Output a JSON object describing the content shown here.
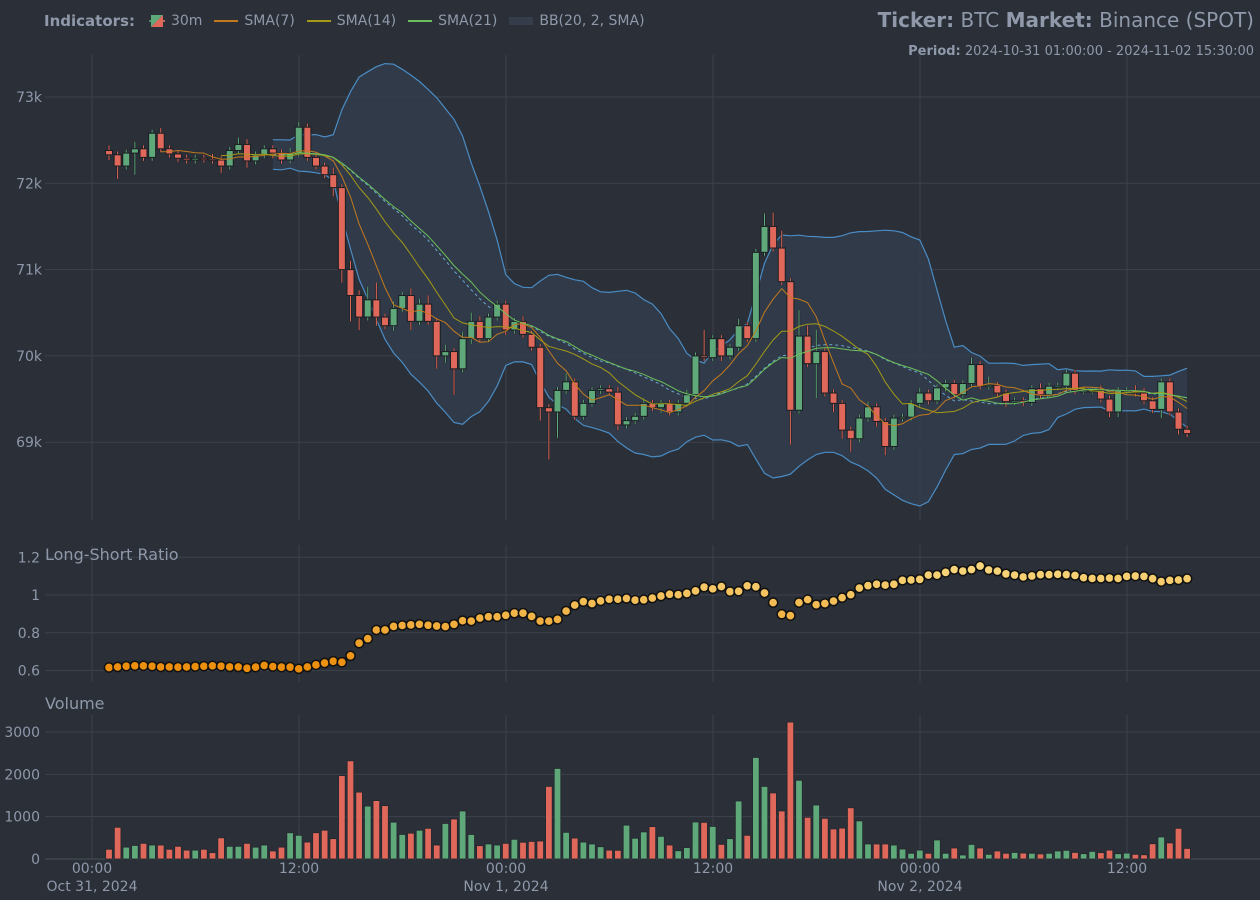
{
  "header": {
    "indicators_label": "Indicators:",
    "legend": [
      {
        "label": "30m",
        "icon": "candlestick-icon"
      },
      {
        "label": "SMA(7)",
        "color": "#c27a1e"
      },
      {
        "label": "SMA(14)",
        "color": "#a39a17"
      },
      {
        "label": "SMA(21)",
        "color": "#6cbf5a"
      },
      {
        "label": "BB(20, 2, SMA)",
        "color": "#353d4b"
      }
    ],
    "ticker_label": "Ticker:",
    "ticker": "BTC",
    "market_label": "Market:",
    "market": "Binance (SPOT)",
    "period_label": "Period:",
    "period": "2024-10-31 01:00:00 - 2024-11-02 15:30:00"
  },
  "colors": {
    "up": "#5fa87a",
    "down": "#e0685a",
    "bb": "#4a8cc4",
    "bb_fill": "#323c4c",
    "background": "#2a2f38",
    "grid": "#3c424c"
  },
  "chart_data": [
    {
      "type": "candlestick",
      "title": "BTC 30m",
      "interval_minutes": 30,
      "start": "2024-10-31 01:00:00",
      "first_open": 72380,
      "close": [
        72330,
        72200,
        72350,
        72400,
        72300,
        72580,
        72400,
        72340,
        72290,
        72270,
        72290,
        72280,
        72270,
        72200,
        72380,
        72450,
        72260,
        72330,
        72400,
        72350,
        72270,
        72350,
        72650,
        72300,
        72200,
        72100,
        71950,
        71000,
        70700,
        70450,
        70650,
        70450,
        70350,
        70550,
        70700,
        70400,
        70600,
        70400,
        70000,
        70050,
        69850,
        70200,
        70400,
        70200,
        70450,
        70600,
        70300,
        70400,
        70250,
        70100,
        69400,
        69350,
        69600,
        69700,
        69300,
        69450,
        69600,
        69620,
        69580,
        69200,
        69250,
        69300,
        69450,
        69400,
        69450,
        69350,
        69450,
        69550,
        70000,
        69980,
        70200,
        70000,
        70100,
        70350,
        70200,
        71200,
        71500,
        71250,
        70860,
        69370,
        70230,
        69910,
        70050,
        69570,
        69450,
        69140,
        69040,
        69280,
        69410,
        69240,
        68950,
        69280,
        69290,
        69450,
        69570,
        69480,
        69630,
        69680,
        69550,
        69680,
        69900,
        69650,
        69660,
        69570,
        69470,
        69480,
        69460,
        69620,
        69550,
        69650,
        69650,
        69800,
        69600,
        69600,
        69600,
        69500,
        69350,
        69600,
        69600,
        69570,
        69480,
        69380,
        69700,
        69350,
        69150,
        69100
      ],
      "wick_up": [
        60,
        40,
        40,
        80,
        40,
        40,
        60,
        40,
        40,
        40,
        40,
        40,
        60,
        40,
        40,
        80,
        60,
        40,
        40,
        40,
        40,
        60,
        60,
        40,
        40,
        40,
        80,
        40,
        100,
        60,
        150,
        200,
        40,
        80,
        40,
        80,
        60,
        100,
        40,
        80,
        40,
        80,
        100,
        60,
        40,
        40,
        40,
        40,
        60,
        40,
        40,
        40,
        40,
        100,
        40,
        40,
        40,
        40,
        40,
        60,
        40,
        40,
        60,
        40,
        40,
        40,
        40,
        60,
        40,
        300,
        40,
        40,
        40,
        80,
        40,
        40,
        150,
        160,
        200,
        40,
        300,
        120,
        250,
        40,
        40,
        40,
        40,
        40,
        60,
        40,
        40,
        40,
        40,
        40,
        60,
        40,
        40,
        40,
        40,
        40,
        80,
        40,
        100,
        40,
        40,
        40,
        40,
        40,
        60,
        40,
        40,
        40,
        40,
        40,
        40,
        60,
        40,
        40,
        40,
        60,
        60,
        40,
        40,
        40,
        40,
        40
      ],
      "wick_down": [
        60,
        150,
        40,
        250,
        40,
        40,
        40,
        40,
        40,
        40,
        40,
        40,
        40,
        80,
        40,
        40,
        80,
        40,
        40,
        60,
        40,
        40,
        40,
        40,
        40,
        40,
        100,
        150,
        300,
        150,
        40,
        100,
        40,
        60,
        40,
        100,
        40,
        40,
        150,
        80,
        300,
        40,
        60,
        40,
        40,
        40,
        60,
        40,
        40,
        40,
        150,
        550,
        300,
        40,
        40,
        40,
        40,
        40,
        40,
        60,
        40,
        40,
        40,
        40,
        60,
        40,
        40,
        40,
        40,
        40,
        40,
        60,
        40,
        40,
        40,
        40,
        40,
        40,
        40,
        400,
        40,
        40,
        400,
        40,
        100,
        100,
        150,
        40,
        40,
        60,
        100,
        40,
        40,
        40,
        40,
        40,
        40,
        40,
        40,
        40,
        40,
        40,
        40,
        40,
        60,
        40,
        40,
        40,
        40,
        40,
        40,
        40,
        40,
        40,
        40,
        40,
        60,
        60,
        40,
        40,
        40,
        40,
        100,
        40,
        60,
        40
      ],
      "indicators": {
        "sma": [
          7,
          14,
          21
        ],
        "bb": {
          "period": 20,
          "std": 2
        }
      },
      "y_ticks": [
        69000,
        70000,
        71000,
        72000,
        73000
      ],
      "y_tick_labels": [
        "69k",
        "70k",
        "71k",
        "72k",
        "73k"
      ],
      "ylim": [
        68100,
        73480
      ]
    },
    {
      "type": "scatter",
      "title": "Long-Short Ratio",
      "values": [
        0.616,
        0.619,
        0.623,
        0.625,
        0.625,
        0.623,
        0.619,
        0.619,
        0.618,
        0.619,
        0.621,
        0.623,
        0.625,
        0.623,
        0.619,
        0.619,
        0.612,
        0.618,
        0.627,
        0.621,
        0.618,
        0.618,
        0.609,
        0.619,
        0.63,
        0.64,
        0.649,
        0.644,
        0.678,
        0.745,
        0.769,
        0.815,
        0.815,
        0.834,
        0.839,
        0.842,
        0.845,
        0.84,
        0.836,
        0.833,
        0.845,
        0.864,
        0.862,
        0.878,
        0.885,
        0.885,
        0.893,
        0.904,
        0.904,
        0.887,
        0.862,
        0.862,
        0.871,
        0.915,
        0.947,
        0.965,
        0.955,
        0.969,
        0.978,
        0.978,
        0.982,
        0.973,
        0.975,
        0.984,
        0.995,
        1.004,
        1.002,
        1.009,
        1.022,
        1.042,
        1.033,
        1.045,
        1.018,
        1.02,
        1.049,
        1.044,
        1.011,
        0.96,
        0.898,
        0.891,
        0.96,
        0.976,
        0.949,
        0.955,
        0.968,
        0.986,
        1.002,
        1.037,
        1.05,
        1.057,
        1.053,
        1.057,
        1.078,
        1.08,
        1.083,
        1.106,
        1.106,
        1.12,
        1.135,
        1.127,
        1.135,
        1.154,
        1.133,
        1.127,
        1.112,
        1.106,
        1.096,
        1.101,
        1.108,
        1.108,
        1.11,
        1.108,
        1.104,
        1.092,
        1.088,
        1.088,
        1.09,
        1.088,
        1.099,
        1.101,
        1.099,
        1.087,
        1.071,
        1.078,
        1.08,
        1.087
      ],
      "y_ticks": [
        0.6,
        0.8,
        1,
        1.2
      ],
      "y_tick_labels": [
        "0.6",
        "0.8",
        "1",
        "1.2"
      ]
    },
    {
      "type": "bar",
      "title": "Volume",
      "values": [
        230,
        750,
        280,
        320,
        370,
        330,
        330,
        230,
        300,
        210,
        210,
        230,
        150,
        500,
        300,
        300,
        370,
        280,
        330,
        190,
        280,
        620,
        560,
        400,
        620,
        680,
        480,
        1970,
        2320,
        1580,
        1250,
        1380,
        1260,
        870,
        580,
        610,
        680,
        725,
        330,
        840,
        945,
        1135,
        580,
        315,
        355,
        330,
        370,
        465,
        395,
        415,
        425,
        1715,
        2140,
        630,
        495,
        400,
        355,
        290,
        210,
        205,
        800,
        490,
        640,
        765,
        535,
        330,
        195,
        270,
        875,
        865,
        770,
        345,
        480,
        1370,
        560,
        2400,
        1715,
        1560,
        1135,
        3235,
        1860,
        985,
        1275,
        960,
        710,
        730,
        1210,
        900,
        355,
        355,
        355,
        330,
        235,
        135,
        210,
        135,
        450,
        135,
        260,
        95,
        345,
        260,
        110,
        190,
        135,
        155,
        140,
        135,
        120,
        135,
        190,
        205,
        155,
        125,
        180,
        150,
        210,
        125,
        140,
        110,
        100,
        360,
        520,
        380,
        725,
        250
      ],
      "y_ticks": [
        0,
        1000,
        2000,
        3000
      ],
      "y_tick_labels": [
        "0",
        "1000",
        "2000",
        "3000"
      ]
    }
  ],
  "x_axis": {
    "ticks": [
      {
        "time": "00:00",
        "date": "Oct 31, 2024"
      },
      {
        "time": "12:00",
        "date": ""
      },
      {
        "time": "00:00",
        "date": "Nov 1, 2024"
      },
      {
        "time": "12:00",
        "date": ""
      },
      {
        "time": "00:00",
        "date": "Nov 2, 2024"
      },
      {
        "time": "12:00",
        "date": ""
      }
    ]
  }
}
